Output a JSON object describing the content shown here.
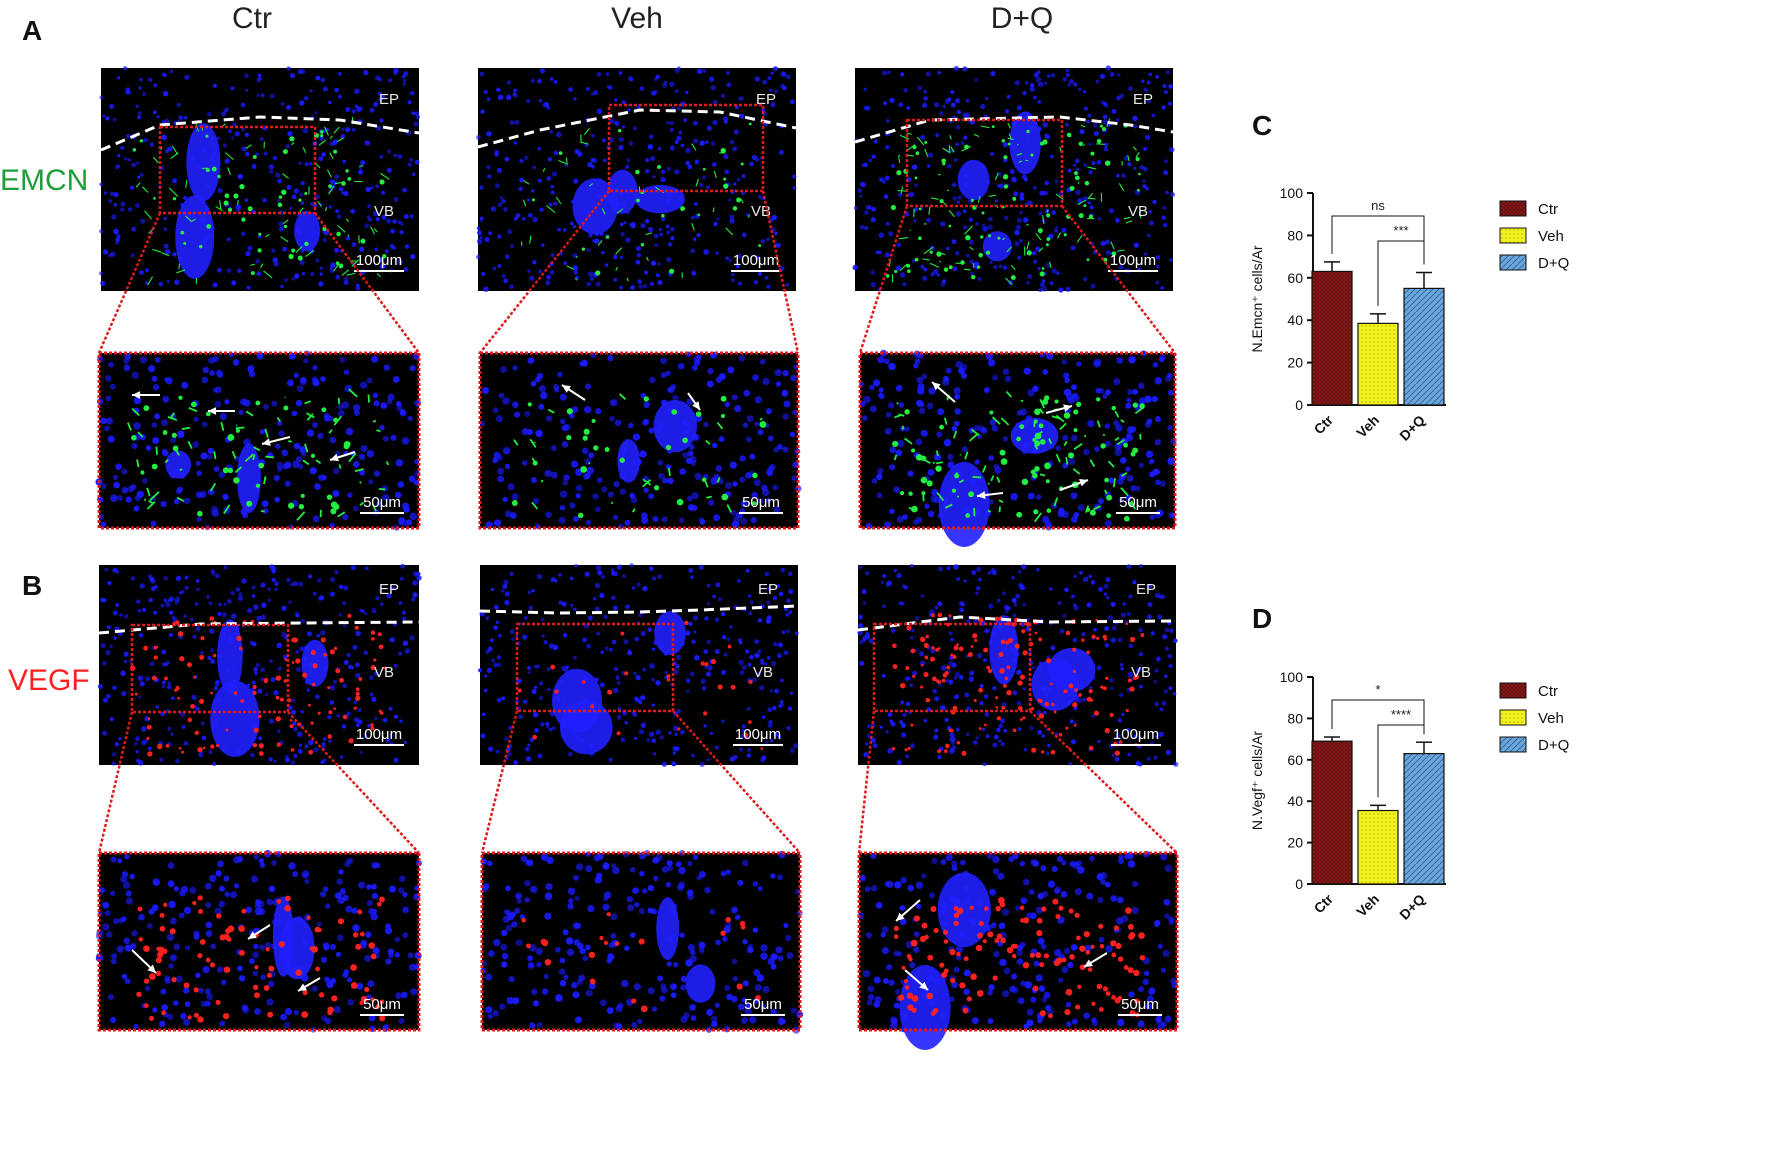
{
  "panels": {
    "A": "A",
    "B": "B",
    "C": "C",
    "D": "D"
  },
  "columns": [
    "Ctr",
    "Veh",
    "D+Q"
  ],
  "rows": [
    {
      "label": "EMCN",
      "color": "#1e9e3a"
    },
    {
      "label": "VEGF",
      "color": "#ff2020"
    }
  ],
  "region_labels": {
    "ep": "EP",
    "vb": "VB"
  },
  "scale_bars": {
    "overview": "100μm",
    "zoom": "50μm"
  },
  "colors": {
    "background": "#000000",
    "nuclei": "#1a1aff",
    "emcn_signal": "#22ee44",
    "vegf_signal": "#ff2020",
    "zoom_box": "#e01a1a",
    "ctr": "#8b1a1a",
    "veh": "#f2f21c",
    "dq": "#5b9bd5"
  },
  "chart_data": [
    {
      "type": "bar",
      "panel": "C",
      "categories": [
        "Ctr",
        "Veh",
        "D+Q"
      ],
      "values": [
        63,
        38.5,
        55
      ],
      "errors": [
        4.5,
        4.5,
        7.5
      ],
      "ylabel": "N.Emcn⁺ cells/Ar",
      "ylim": [
        0,
        100
      ],
      "yticks": [
        "0",
        "20",
        "40",
        "60",
        "80",
        "100"
      ],
      "significance": [
        {
          "from": "Ctr",
          "to": "D+Q",
          "label": "ns"
        },
        {
          "from": "Veh",
          "to": "D+Q",
          "label": "***"
        }
      ],
      "legend": [
        "Ctr",
        "Veh",
        "D+Q"
      ],
      "legend_position": "right"
    },
    {
      "type": "bar",
      "panel": "D",
      "categories": [
        "Ctr",
        "Veh",
        "D+Q"
      ],
      "values": [
        69,
        35.5,
        63
      ],
      "errors": [
        2,
        2.5,
        5.5
      ],
      "ylabel": "N.Vegf⁺ cells/Ar",
      "ylim": [
        0,
        100
      ],
      "yticks": [
        "0",
        "20",
        "40",
        "60",
        "80",
        "100"
      ],
      "significance": [
        {
          "from": "Ctr",
          "to": "D+Q",
          "label": "*"
        },
        {
          "from": "Veh",
          "to": "D+Q",
          "label": "****"
        }
      ],
      "legend": [
        "Ctr",
        "Veh",
        "D+Q"
      ],
      "legend_position": "right"
    }
  ]
}
